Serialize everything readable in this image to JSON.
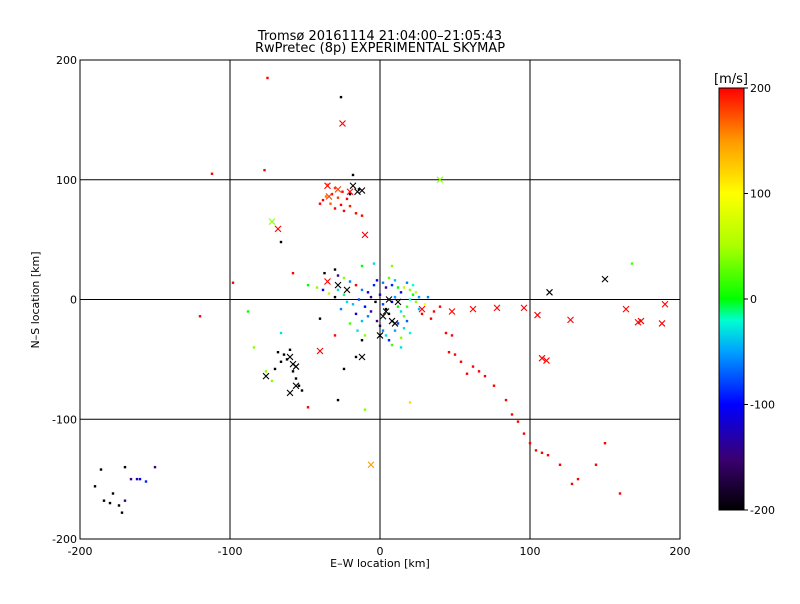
{
  "chart_data": {
    "type": "scatter",
    "title": "Tromsø 20161114 21:04:00–21:05:43",
    "subtitle": "RwPretec (8p) EXPERIMENTAL SKYMAP",
    "xlabel": "E–W location [km]",
    "ylabel": "N–S location [km]",
    "xlim": [
      -200,
      200
    ],
    "ylim": [
      -200,
      200
    ],
    "xticks": [
      -200,
      -100,
      0,
      100,
      200
    ],
    "yticks": [
      -200,
      -100,
      0,
      100,
      200
    ],
    "grid": true,
    "colorbar": {
      "label": "[m/s]",
      "min": -200,
      "max": 200,
      "ticks": [
        200,
        100,
        0,
        -100,
        -200
      ]
    },
    "series": [
      {
        "name": "points",
        "marker": "dot",
        "values": [
          [
            -75,
            185,
            200
          ],
          [
            -26,
            169,
            -200
          ],
          [
            -112,
            105,
            200
          ],
          [
            -77,
            108,
            200
          ],
          [
            -18,
            104,
            -200
          ],
          [
            -35,
            96,
            150
          ],
          [
            -30,
            93,
            180
          ],
          [
            -25,
            90,
            200
          ],
          [
            -32,
            88,
            200
          ],
          [
            -28,
            85,
            180
          ],
          [
            -22,
            84,
            200
          ],
          [
            -38,
            83,
            200
          ],
          [
            -33,
            80,
            170
          ],
          [
            -26,
            79,
            200
          ],
          [
            -20,
            78,
            190
          ],
          [
            -30,
            76,
            200
          ],
          [
            -24,
            74,
            200
          ],
          [
            -16,
            72,
            200
          ],
          [
            -40,
            80,
            200
          ],
          [
            -36,
            86,
            160
          ],
          [
            -20,
            88,
            -200
          ],
          [
            -14,
            92,
            -200
          ],
          [
            -12,
            70,
            200
          ],
          [
            -66,
            48,
            -200
          ],
          [
            -58,
            22,
            200
          ],
          [
            -37,
            22,
            -200
          ],
          [
            -30,
            25,
            -200
          ],
          [
            -28,
            20,
            -150
          ],
          [
            -24,
            18,
            40
          ],
          [
            -12,
            28,
            0
          ],
          [
            -4,
            30,
            -30
          ],
          [
            8,
            28,
            40
          ],
          [
            -42,
            10,
            40
          ],
          [
            -38,
            8,
            -100
          ],
          [
            -48,
            12,
            0
          ],
          [
            -34,
            5,
            60
          ],
          [
            -30,
            2,
            -200
          ],
          [
            -28,
            8,
            -30
          ],
          [
            -20,
            15,
            -60
          ],
          [
            -16,
            12,
            200
          ],
          [
            -12,
            8,
            -60
          ],
          [
            -8,
            6,
            -100
          ],
          [
            -6,
            2,
            -150
          ],
          [
            -3,
            -2,
            -200
          ],
          [
            0,
            4,
            -120
          ],
          [
            2,
            -4,
            -80
          ],
          [
            4,
            -8,
            -200
          ],
          [
            6,
            -12,
            -200
          ],
          [
            8,
            -2,
            -100
          ],
          [
            10,
            2,
            -50
          ],
          [
            12,
            -6,
            0
          ],
          [
            14,
            -10,
            -30
          ],
          [
            16,
            -14,
            30
          ],
          [
            18,
            -6,
            20
          ],
          [
            20,
            0,
            -20
          ],
          [
            22,
            4,
            0
          ],
          [
            24,
            -2,
            40
          ],
          [
            26,
            -8,
            -40
          ],
          [
            28,
            -12,
            200
          ],
          [
            30,
            -4,
            100
          ],
          [
            32,
            2,
            -60
          ],
          [
            34,
            -16,
            200
          ],
          [
            -2,
            -18,
            -150
          ],
          [
            0,
            -22,
            -180
          ],
          [
            2,
            -26,
            -60
          ],
          [
            4,
            -30,
            -30
          ],
          [
            6,
            -34,
            -90
          ],
          [
            8,
            -38,
            20
          ],
          [
            10,
            -26,
            -50
          ],
          [
            12,
            -20,
            -80
          ],
          [
            14,
            -32,
            40
          ],
          [
            16,
            -24,
            -30
          ],
          [
            18,
            -18,
            -70
          ],
          [
            20,
            -28,
            -20
          ],
          [
            -6,
            -10,
            -130
          ],
          [
            -8,
            -14,
            -60
          ],
          [
            -10,
            -6,
            -100
          ],
          [
            -12,
            -18,
            -40
          ],
          [
            -4,
            12,
            -90
          ],
          [
            -2,
            16,
            -110
          ],
          [
            2,
            14,
            -60
          ],
          [
            4,
            10,
            -130
          ],
          [
            6,
            18,
            30
          ],
          [
            8,
            12,
            -90
          ],
          [
            10,
            16,
            -40
          ],
          [
            12,
            10,
            0
          ],
          [
            14,
            6,
            -110
          ],
          [
            16,
            10,
            60
          ],
          [
            18,
            14,
            -60
          ],
          [
            20,
            8,
            40
          ],
          [
            22,
            12,
            -20
          ],
          [
            24,
            6,
            60
          ],
          [
            26,
            2,
            -50
          ],
          [
            -14,
            0,
            -80
          ],
          [
            -18,
            -4,
            -40
          ],
          [
            -22,
            -2,
            -30
          ],
          [
            -24,
            4,
            -10
          ],
          [
            -26,
            -8,
            -60
          ],
          [
            -16,
            -12,
            -110
          ],
          [
            -20,
            -20,
            20
          ],
          [
            -15,
            -26,
            -30
          ],
          [
            -10,
            -30,
            40
          ],
          [
            36,
            -10,
            200
          ],
          [
            40,
            -6,
            200
          ],
          [
            44,
            -28,
            200
          ],
          [
            48,
            -30,
            200
          ],
          [
            46,
            -44,
            200
          ],
          [
            50,
            -46,
            200
          ],
          [
            54,
            -52,
            200
          ],
          [
            58,
            -62,
            200
          ],
          [
            62,
            -56,
            200
          ],
          [
            66,
            -60,
            200
          ],
          [
            70,
            -64,
            200
          ],
          [
            76,
            -72,
            200
          ],
          [
            84,
            -84,
            200
          ],
          [
            88,
            -96,
            200
          ],
          [
            92,
            -102,
            200
          ],
          [
            96,
            -112,
            200
          ],
          [
            100,
            -120,
            200
          ],
          [
            104,
            -126,
            200
          ],
          [
            108,
            -128,
            200
          ],
          [
            112,
            -130,
            200
          ],
          [
            120,
            -138,
            200
          ],
          [
            128,
            -154,
            200
          ],
          [
            132,
            -150,
            200
          ],
          [
            144,
            -138,
            200
          ],
          [
            160,
            -162,
            200
          ],
          [
            150,
            -120,
            200
          ],
          [
            -120,
            -14,
            200
          ],
          [
            -98,
            14,
            200
          ],
          [
            -70,
            -58,
            -200
          ],
          [
            -66,
            -52,
            -200
          ],
          [
            -62,
            -50,
            -200
          ],
          [
            -58,
            -60,
            -200
          ],
          [
            -56,
            -66,
            -200
          ],
          [
            -54,
            -72,
            -200
          ],
          [
            -52,
            -76,
            -200
          ],
          [
            -60,
            -42,
            -200
          ],
          [
            -64,
            -46,
            -200
          ],
          [
            -68,
            -44,
            -200
          ],
          [
            -66,
            -28,
            -30
          ],
          [
            -76,
            -60,
            40
          ],
          [
            -72,
            -68,
            40
          ],
          [
            -84,
            -40,
            40
          ],
          [
            -88,
            -10,
            0
          ],
          [
            -24,
            -58,
            -200
          ],
          [
            -10,
            -92,
            40
          ],
          [
            20,
            -86,
            120
          ],
          [
            -48,
            -90,
            200
          ],
          [
            -28,
            -84,
            -200
          ],
          [
            -186,
            -142,
            -200
          ],
          [
            -190,
            -156,
            -200
          ],
          [
            -184,
            -168,
            -200
          ],
          [
            -180,
            -170,
            -200
          ],
          [
            -178,
            -162,
            -200
          ],
          [
            -174,
            -172,
            -200
          ],
          [
            -172,
            -178,
            -200
          ],
          [
            -170,
            -168,
            -150
          ],
          [
            -170,
            -140,
            -200
          ],
          [
            -166,
            -150,
            -150
          ],
          [
            -160,
            -150,
            -100
          ],
          [
            -156,
            -152,
            -90
          ],
          [
            -150,
            -140,
            -150
          ],
          [
            -162,
            -150,
            -120
          ],
          [
            168,
            30,
            20
          ],
          [
            -16,
            -48,
            -200
          ],
          [
            -12,
            -34,
            -200
          ],
          [
            -40,
            -16,
            -200
          ],
          [
            -30,
            -30,
            200
          ],
          [
            14,
            -40,
            -30
          ]
        ]
      },
      {
        "name": "crosses",
        "marker": "x",
        "values": [
          [
            -25,
            147,
            200
          ],
          [
            -18,
            95,
            -200
          ],
          [
            -12,
            91,
            -200
          ],
          [
            -15,
            90,
            -200
          ],
          [
            -20,
            90,
            200
          ],
          [
            -35,
            95,
            200
          ],
          [
            -34,
            86,
            180
          ],
          [
            -28,
            92,
            180
          ],
          [
            -72,
            65,
            40
          ],
          [
            -68,
            59,
            200
          ],
          [
            -10,
            54,
            200
          ],
          [
            40,
            100,
            40
          ],
          [
            -28,
            12,
            -200
          ],
          [
            -22,
            8,
            -200
          ],
          [
            -35,
            15,
            200
          ],
          [
            -40,
            -43,
            200
          ],
          [
            -12,
            -48,
            -200
          ],
          [
            -76,
            -64,
            -200
          ],
          [
            -60,
            -48,
            -200
          ],
          [
            -56,
            -56,
            -200
          ],
          [
            -58,
            -54,
            -200
          ],
          [
            -60,
            -78,
            -200
          ],
          [
            -56,
            -72,
            -200
          ],
          [
            -6,
            -138,
            150
          ],
          [
            113,
            6,
            -200
          ],
          [
            150,
            17,
            -200
          ],
          [
            48,
            -10,
            200
          ],
          [
            62,
            -8,
            200
          ],
          [
            78,
            -7,
            200
          ],
          [
            96,
            -7,
            200
          ],
          [
            105,
            -13,
            200
          ],
          [
            108,
            -49,
            200
          ],
          [
            111,
            -51,
            200
          ],
          [
            127,
            -17,
            200
          ],
          [
            164,
            -8,
            200
          ],
          [
            172,
            -19,
            200
          ],
          [
            174,
            -18,
            200
          ],
          [
            188,
            -20,
            200
          ],
          [
            190,
            -4,
            200
          ],
          [
            4,
            -10,
            -200
          ],
          [
            8,
            -18,
            -200
          ],
          [
            2,
            -14,
            -200
          ],
          [
            0,
            -30,
            -200
          ],
          [
            10,
            -20,
            -200
          ],
          [
            12,
            -2,
            -200
          ],
          [
            6,
            0,
            -200
          ],
          [
            28,
            -8,
            200
          ]
        ]
      }
    ]
  }
}
